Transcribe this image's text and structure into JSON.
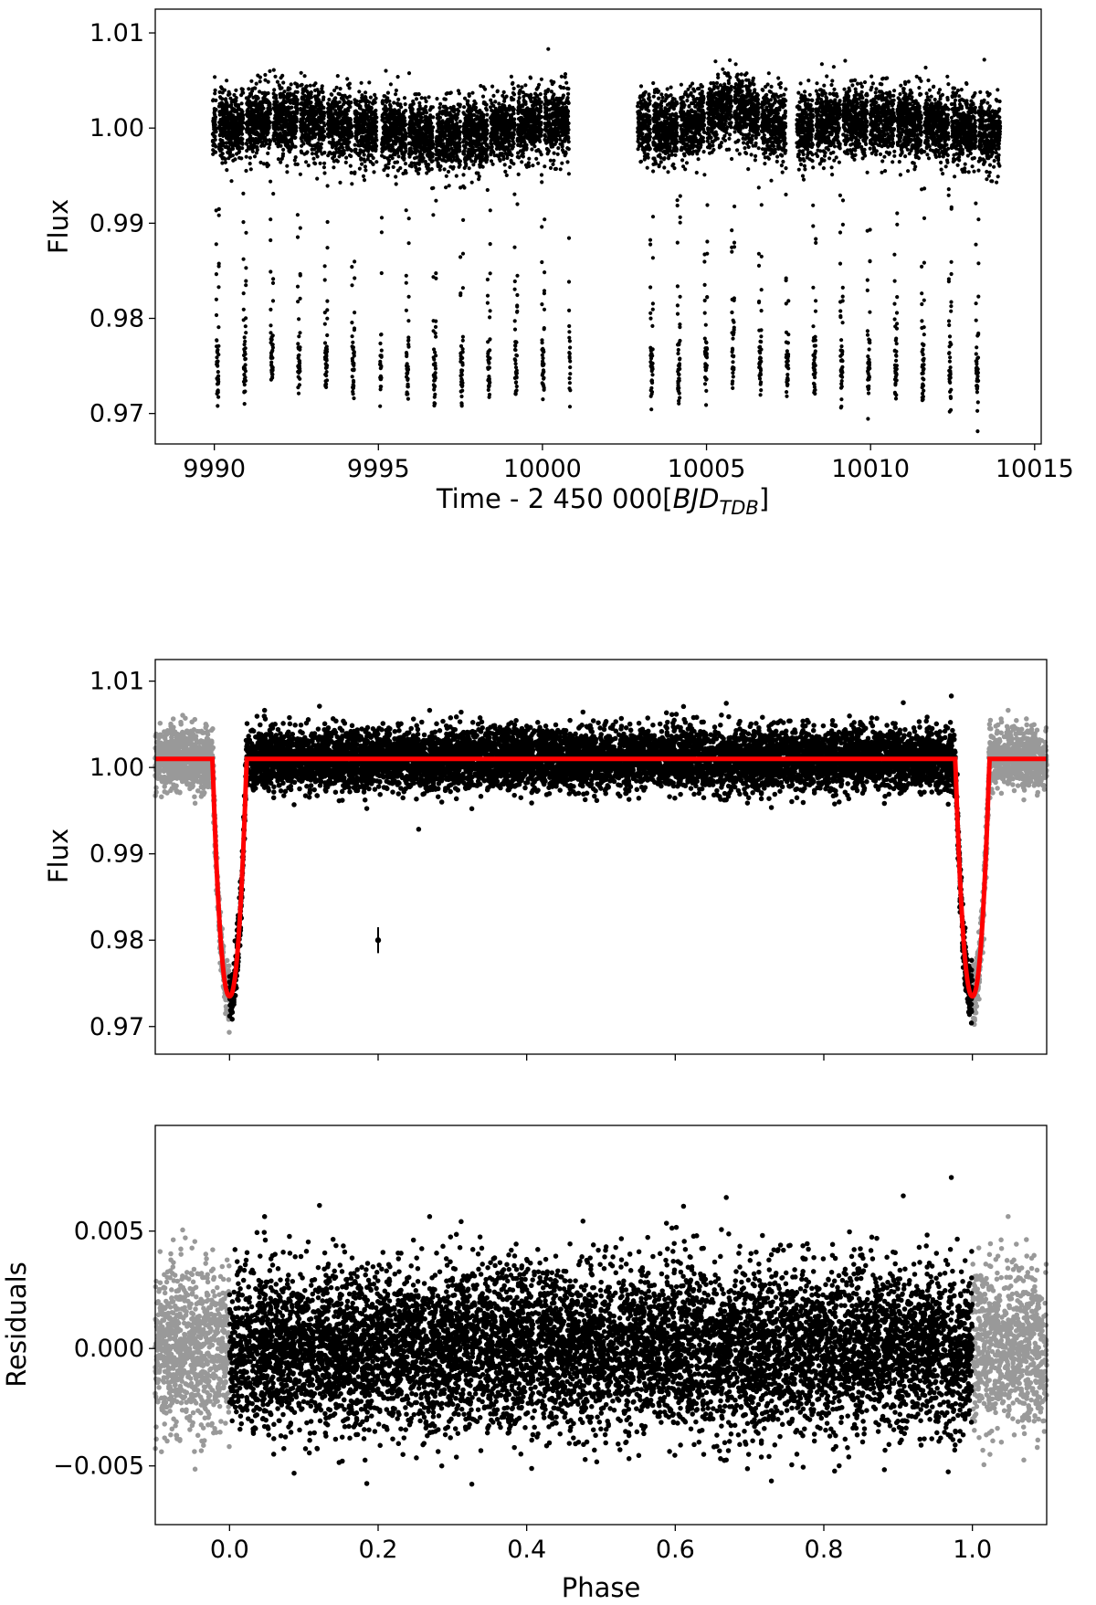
{
  "colors": {
    "data": "#000000",
    "wrapped_data": "#999999",
    "model": "#ff0000",
    "axes": "#000000"
  },
  "chart_data": [
    {
      "type": "scatter",
      "xlabel_main": "Time - 2 450 000[",
      "xlabel_italic": "BJD",
      "xlabel_sub": "TDB",
      "xlabel_close": "]",
      "ylabel": "Flux",
      "xlim": [
        9988.2,
        10015.2
      ],
      "ylim": [
        0.9668,
        1.0125
      ],
      "xticks": [
        9990,
        9995,
        10000,
        10005,
        10010,
        10015
      ],
      "xtick_labels": [
        "9990",
        "9995",
        "10000",
        "10005",
        "10010",
        "10015"
      ],
      "yticks": [
        0.97,
        0.98,
        0.99,
        1.0,
        1.01
      ],
      "ytick_labels": [
        "0.97",
        "0.98",
        "0.99",
        "1.00",
        "1.01"
      ],
      "observing_segments": [
        [
          9989.95,
          9994.95
        ],
        [
          9995.05,
          10000.85
        ],
        [
          10002.9,
          10007.5
        ],
        [
          10007.75,
          10013.95
        ]
      ],
      "baseline_flux": 1.0,
      "scatter_sigma": 0.0018,
      "period_days": 0.8268,
      "first_transit_mid": 9990.1,
      "transit_depth": 0.026,
      "grid": false,
      "legend": "none"
    },
    {
      "type": "scatter",
      "ylabel": "Flux",
      "xlim": [
        -0.1,
        1.1
      ],
      "ylim": [
        0.9668,
        1.0125
      ],
      "xticks": [
        0.0,
        0.2,
        0.4,
        0.6,
        0.8,
        1.0
      ],
      "yticks": [
        0.97,
        0.98,
        0.99,
        1.0,
        1.01
      ],
      "ytick_labels": [
        "0.97",
        "0.98",
        "0.99",
        "1.00",
        "1.01"
      ],
      "model": {
        "baseline": 1.001,
        "depth": 0.0275,
        "transit_centers": [
          0.0,
          1.0
        ],
        "full_width_phase": 0.046
      },
      "error_bar_example": {
        "x": 0.2,
        "y": 0.98,
        "yerr": 0.0015
      },
      "wrapped_ranges": [
        [
          -0.1,
          0.0
        ],
        [
          1.0,
          1.1
        ]
      ],
      "grid": false,
      "legend": "none"
    },
    {
      "type": "scatter",
      "ylabel": "Residuals",
      "xlabel": "Phase",
      "xlim": [
        -0.1,
        1.1
      ],
      "ylim": [
        -0.0075,
        0.0095
      ],
      "xticks": [
        0.0,
        0.2,
        0.4,
        0.6,
        0.8,
        1.0
      ],
      "xtick_labels": [
        "0.0",
        "0.2",
        "0.4",
        "0.6",
        "0.8",
        "1.0"
      ],
      "yticks": [
        -0.005,
        0.0,
        0.005
      ],
      "ytick_labels": [
        "−0.005",
        "0.000",
        "0.005"
      ],
      "residual_sigma": 0.0017,
      "wrapped_ranges": [
        [
          -0.1,
          0.0
        ],
        [
          1.0,
          1.1
        ]
      ],
      "grid": false,
      "legend": "none"
    }
  ]
}
